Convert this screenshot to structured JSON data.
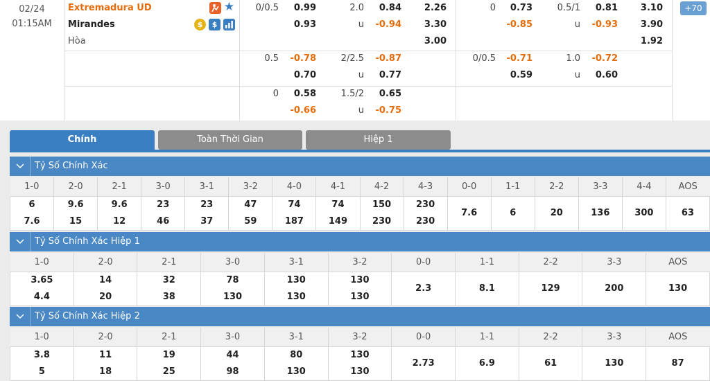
{
  "match": {
    "date": "02/24",
    "time": "01:15AM",
    "home": "Extremadura UD",
    "away": "Mirandes",
    "draw": "Hòa",
    "plus_count": "+70",
    "rows": [
      {
        "h1": "0/0.5",
        "h2": "0.99",
        "h3": "2.0",
        "h4": "0.84",
        "h5": "2.26",
        "f1": "0",
        "f2": "0.73",
        "f3": "0.5/1",
        "f4": "0.81",
        "f5": "3.10"
      },
      {
        "h1": "",
        "h2": "0.93",
        "h3": "u",
        "h4": "-0.94",
        "h5": "3.30",
        "f1": "",
        "f2": "-0.85",
        "f3": "u",
        "f4": "-0.93",
        "f5": "3.90"
      },
      {
        "h1": "",
        "h2": "",
        "h3": "",
        "h4": "",
        "h5": "3.00",
        "f1": "",
        "f2": "",
        "f3": "",
        "f4": "",
        "f5": "1.92"
      },
      {
        "h1": "0.5",
        "h2": "-0.78",
        "h3": "2/2.5",
        "h4": "-0.87",
        "h5": "",
        "f1": "0/0.5",
        "f2": "-0.71",
        "f3": "1.0",
        "f4": "-0.72",
        "f5": ""
      },
      {
        "h1": "",
        "h2": "0.70",
        "h3": "u",
        "h4": "0.77",
        "h5": "",
        "f1": "",
        "f2": "0.59",
        "f3": "u",
        "f4": "0.60",
        "f5": ""
      },
      {
        "h1": "0",
        "h2": "0.58",
        "h3": "1.5/2",
        "h4": "0.65",
        "h5": "",
        "f1": "",
        "f2": "",
        "f3": "",
        "f4": "",
        "f5": ""
      },
      {
        "h1": "",
        "h2": "-0.66",
        "h3": "u",
        "h4": "-0.75",
        "h5": "",
        "f1": "",
        "f2": "",
        "f3": "",
        "f4": "",
        "f5": ""
      }
    ]
  },
  "tabs": [
    "Chính",
    "Toàn Thời Gian",
    "Hiệp 1"
  ],
  "sections": [
    {
      "title": "Tỷ Số Chính Xác",
      "headers": [
        "1-0",
        "2-0",
        "2-1",
        "3-0",
        "3-1",
        "3-2",
        "4-0",
        "4-1",
        "4-2",
        "4-3",
        "0-0",
        "1-1",
        "2-2",
        "3-3",
        "4-4",
        "AOS"
      ],
      "top": [
        "6",
        "9.6",
        "9.6",
        "23",
        "23",
        "47",
        "74",
        "74",
        "150",
        "230",
        "",
        "",
        "",
        "",
        "",
        ""
      ],
      "bottom": [
        "7.6",
        "15",
        "12",
        "46",
        "37",
        "59",
        "187",
        "149",
        "230",
        "230",
        "",
        "",
        "",
        "",
        "",
        ""
      ],
      "single": [
        "",
        "",
        "",
        "",
        "",
        "",
        "",
        "",
        "",
        "",
        "7.6",
        "6",
        "20",
        "136",
        "300",
        "63"
      ]
    },
    {
      "title": "Tỷ Số Chính Xác Hiệp 1",
      "headers": [
        "1-0",
        "2-0",
        "2-1",
        "3-0",
        "3-1",
        "3-2",
        "0-0",
        "1-1",
        "2-2",
        "3-3",
        "AOS"
      ],
      "top": [
        "3.65",
        "14",
        "32",
        "78",
        "130",
        "130",
        "",
        "",
        "",
        "",
        ""
      ],
      "bottom": [
        "4.4",
        "20",
        "38",
        "130",
        "130",
        "130",
        "",
        "",
        "",
        "",
        ""
      ],
      "single": [
        "",
        "",
        "",
        "",
        "",
        "",
        "2.3",
        "8.1",
        "129",
        "200",
        "130"
      ]
    },
    {
      "title": "Tỷ Số Chính Xác Hiệp 2",
      "headers": [
        "1-0",
        "2-0",
        "2-1",
        "3-0",
        "3-1",
        "3-2",
        "0-0",
        "1-1",
        "2-2",
        "3-3",
        "AOS"
      ],
      "top": [
        "3.8",
        "11",
        "19",
        "44",
        "80",
        "130",
        "",
        "",
        "",
        "",
        ""
      ],
      "bottom": [
        "5",
        "18",
        "25",
        "98",
        "130",
        "130",
        "",
        "",
        "",
        "",
        ""
      ],
      "single": [
        "",
        "",
        "",
        "",
        "",
        "",
        "2.73",
        "6.9",
        "61",
        "130",
        "87"
      ]
    }
  ],
  "colors": {
    "accent": "#3a7fc1",
    "negative": "#e46c0a",
    "tab_inactive": "#8c8c8c"
  }
}
